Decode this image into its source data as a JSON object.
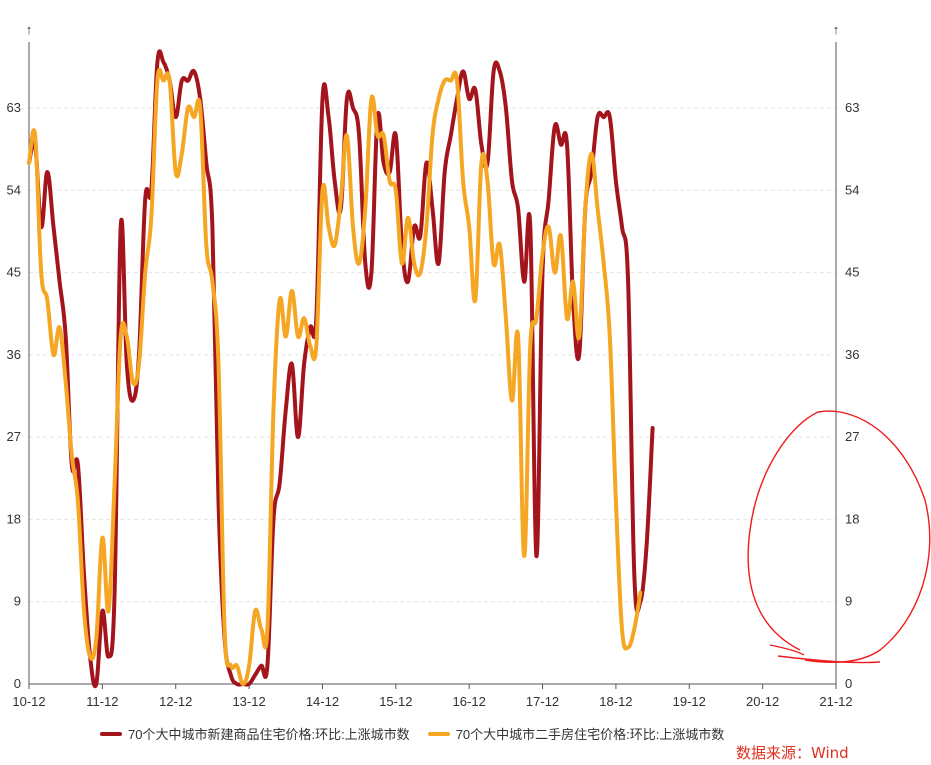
{
  "chart_data": {
    "type": "line",
    "ylim": [
      0,
      70
    ],
    "y_ticks": [
      0,
      9,
      18,
      27,
      36,
      45,
      54,
      63
    ],
    "x_ticks": [
      "10-12",
      "11-12",
      "12-12",
      "13-12",
      "14-12",
      "15-12",
      "16-12",
      "17-12",
      "18-12",
      "19-12",
      "20-12",
      "21-12"
    ],
    "axis_arrow": "↑",
    "grid": true,
    "legend_position": "bottom",
    "series": [
      {
        "name": "70个大中城市新建商品住宅价格:环比:上涨城市数",
        "color": "#a3141c",
        "points": [
          [
            0,
            57
          ],
          [
            1,
            59
          ],
          [
            2,
            50
          ],
          [
            3,
            56
          ],
          [
            4,
            50
          ],
          [
            5,
            44
          ],
          [
            6,
            38
          ],
          [
            7,
            24
          ],
          [
            8,
            24
          ],
          [
            9,
            12
          ],
          [
            10,
            3
          ],
          [
            11,
            0
          ],
          [
            12,
            8
          ],
          [
            13,
            3
          ],
          [
            14,
            10
          ],
          [
            15,
            50
          ],
          [
            16,
            35
          ],
          [
            17,
            31
          ],
          [
            18,
            36
          ],
          [
            19,
            53
          ],
          [
            20,
            54
          ],
          [
            21,
            68
          ],
          [
            22,
            68
          ],
          [
            23,
            66
          ],
          [
            24,
            62
          ],
          [
            25,
            66
          ],
          [
            26,
            66
          ],
          [
            27,
            67
          ],
          [
            28,
            64
          ],
          [
            29,
            57
          ],
          [
            30,
            50
          ],
          [
            31,
            20
          ],
          [
            32,
            5
          ],
          [
            33,
            1
          ],
          [
            34,
            0
          ],
          [
            35,
            0
          ],
          [
            36,
            0
          ],
          [
            37,
            1
          ],
          [
            38,
            2
          ],
          [
            39,
            2
          ],
          [
            40,
            18
          ],
          [
            41,
            22
          ],
          [
            42,
            30
          ],
          [
            43,
            35
          ],
          [
            44,
            27
          ],
          [
            45,
            35
          ],
          [
            46,
            39
          ],
          [
            47,
            40
          ],
          [
            48,
            64
          ],
          [
            49,
            62
          ],
          [
            50,
            55
          ],
          [
            51,
            52
          ],
          [
            52,
            64
          ],
          [
            53,
            63
          ],
          [
            54,
            60
          ],
          [
            55,
            46
          ],
          [
            56,
            45
          ],
          [
            57,
            62
          ],
          [
            58,
            57
          ],
          [
            59,
            56
          ],
          [
            60,
            60
          ],
          [
            61,
            48
          ],
          [
            62,
            44
          ],
          [
            63,
            50
          ],
          [
            64,
            49
          ],
          [
            65,
            57
          ],
          [
            66,
            52
          ],
          [
            67,
            46
          ],
          [
            68,
            56
          ],
          [
            69,
            60
          ],
          [
            70,
            64
          ],
          [
            71,
            67
          ],
          [
            72,
            64
          ],
          [
            73,
            65
          ],
          [
            74,
            59
          ],
          [
            75,
            57
          ],
          [
            76,
            67
          ],
          [
            77,
            67
          ],
          [
            78,
            63
          ],
          [
            79,
            55
          ],
          [
            80,
            52
          ],
          [
            81,
            44
          ],
          [
            82,
            50
          ],
          [
            83,
            14
          ],
          [
            84,
            45
          ],
          [
            85,
            53
          ],
          [
            86,
            61
          ],
          [
            87,
            59
          ],
          [
            88,
            59
          ],
          [
            89,
            42
          ],
          [
            90,
            36
          ],
          [
            91,
            52
          ],
          [
            92,
            56
          ],
          [
            93,
            62
          ],
          [
            94,
            62
          ],
          [
            95,
            62
          ],
          [
            96,
            55
          ],
          [
            97,
            50
          ],
          [
            98,
            44
          ],
          [
            99,
            12
          ],
          [
            100,
            9
          ],
          [
            101,
            15
          ],
          [
            102,
            28
          ]
        ]
      },
      {
        "name": "70个大中城市二手房住宅价格:环比:上涨城市数",
        "color": "#f5a623",
        "points": [
          [
            0,
            57
          ],
          [
            1,
            60
          ],
          [
            2,
            45
          ],
          [
            3,
            42
          ],
          [
            4,
            36
          ],
          [
            5,
            39
          ],
          [
            6,
            33
          ],
          [
            7,
            25
          ],
          [
            8,
            20
          ],
          [
            9,
            8
          ],
          [
            10,
            3
          ],
          [
            11,
            5
          ],
          [
            12,
            16
          ],
          [
            13,
            8
          ],
          [
            14,
            22
          ],
          [
            15,
            38
          ],
          [
            16,
            38
          ],
          [
            17,
            33
          ],
          [
            18,
            35
          ],
          [
            19,
            45
          ],
          [
            20,
            51
          ],
          [
            21,
            66
          ],
          [
            22,
            66
          ],
          [
            23,
            66
          ],
          [
            24,
            56
          ],
          [
            25,
            58
          ],
          [
            26,
            63
          ],
          [
            27,
            62
          ],
          [
            28,
            63
          ],
          [
            29,
            48
          ],
          [
            30,
            44
          ],
          [
            31,
            35
          ],
          [
            32,
            6
          ],
          [
            33,
            2
          ],
          [
            34,
            2
          ],
          [
            35,
            0
          ],
          [
            36,
            2
          ],
          [
            37,
            8
          ],
          [
            38,
            6
          ],
          [
            39,
            6
          ],
          [
            40,
            30
          ],
          [
            41,
            42
          ],
          [
            42,
            38
          ],
          [
            43,
            43
          ],
          [
            44,
            38
          ],
          [
            45,
            40
          ],
          [
            46,
            37
          ],
          [
            47,
            37
          ],
          [
            48,
            54
          ],
          [
            49,
            50
          ],
          [
            50,
            48
          ],
          [
            51,
            53
          ],
          [
            52,
            60
          ],
          [
            53,
            50
          ],
          [
            54,
            46
          ],
          [
            55,
            52
          ],
          [
            56,
            64
          ],
          [
            57,
            60
          ],
          [
            58,
            60
          ],
          [
            59,
            55
          ],
          [
            60,
            54
          ],
          [
            61,
            46
          ],
          [
            62,
            51
          ],
          [
            63,
            46
          ],
          [
            64,
            45
          ],
          [
            65,
            50
          ],
          [
            66,
            60
          ],
          [
            67,
            64
          ],
          [
            68,
            66
          ],
          [
            69,
            66
          ],
          [
            70,
            66
          ],
          [
            71,
            55
          ],
          [
            72,
            50
          ],
          [
            73,
            42
          ],
          [
            74,
            57
          ],
          [
            75,
            55
          ],
          [
            76,
            46
          ],
          [
            77,
            48
          ],
          [
            78,
            40
          ],
          [
            79,
            31
          ],
          [
            80,
            38
          ],
          [
            81,
            14
          ],
          [
            82,
            37
          ],
          [
            83,
            40
          ],
          [
            84,
            47
          ],
          [
            85,
            50
          ],
          [
            86,
            45
          ],
          [
            87,
            49
          ],
          [
            88,
            40
          ],
          [
            89,
            44
          ],
          [
            90,
            38
          ],
          [
            91,
            52
          ],
          [
            92,
            58
          ],
          [
            93,
            52
          ],
          [
            94,
            46
          ],
          [
            95,
            38
          ],
          [
            96,
            20
          ],
          [
            97,
            6
          ],
          [
            98,
            4
          ],
          [
            99,
            6
          ],
          [
            100,
            10
          ]
        ]
      }
    ]
  },
  "source_note": "数据来源：Wind"
}
